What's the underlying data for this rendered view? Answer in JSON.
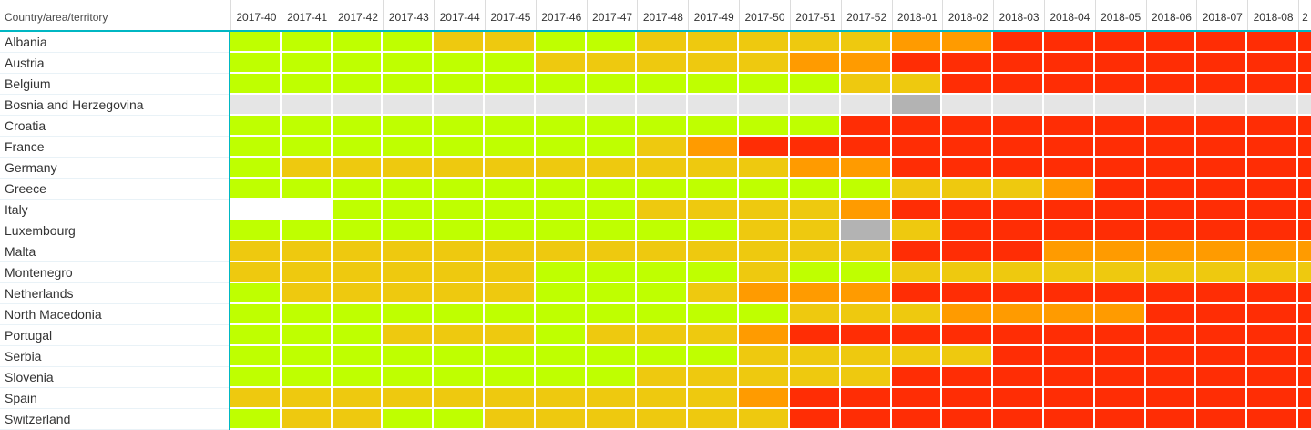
{
  "table": {
    "row_header_label": "Country/area/territory"
  },
  "colors": {
    "accent_teal": "#00B7C3",
    "gridline_white": "#FFFFFF",
    "header_text": "#333333",
    "row_label_text": "#333333"
  },
  "chart_data": {
    "type": "heatmap",
    "title": "",
    "xlabel": "",
    "ylabel": "Country/area/territory",
    "legend_position": "none",
    "grid": true,
    "x_labels": [
      "2017-40",
      "2017-41",
      "2017-42",
      "2017-43",
      "2017-44",
      "2017-45",
      "2017-46",
      "2017-47",
      "2017-48",
      "2017-49",
      "2017-50",
      "2017-51",
      "2017-52",
      "2018-01",
      "2018-02",
      "2018-03",
      "2018-04",
      "2018-05",
      "2018-06",
      "2018-07",
      "2018-08",
      "2"
    ],
    "y_labels": [
      "Albania",
      "Austria",
      "Belgium",
      "Bosnia and Herzegovina",
      "Croatia",
      "France",
      "Germany",
      "Greece",
      "Italy",
      "Luxembourg",
      "Malta",
      "Montenegro",
      "Netherlands",
      "North Macedonia",
      "Portugal",
      "Serbia",
      "Slovenia",
      "Spain",
      "Switzerland"
    ],
    "palette": {
      "g": "#BFFF00",
      "y": "#EEC90F",
      "o": "#FF9B00",
      "r": "#FF2D05",
      "e": "#E5E5E5",
      "d": "#B3B3B3",
      "w": "#FFFFFF"
    },
    "palette_names": {
      "g": "bright-green",
      "y": "yellow",
      "o": "orange",
      "r": "red",
      "e": "light-gray",
      "d": "dark-gray",
      "w": "blank-white"
    },
    "cells": [
      [
        "g",
        "g",
        "g",
        "g",
        "y",
        "y",
        "g",
        "g",
        "y",
        "y",
        "y",
        "y",
        "y",
        "o",
        "o",
        "r",
        "r",
        "r",
        "r",
        "r",
        "r",
        "r"
      ],
      [
        "g",
        "g",
        "g",
        "g",
        "g",
        "g",
        "y",
        "y",
        "y",
        "y",
        "y",
        "o",
        "o",
        "r",
        "r",
        "r",
        "r",
        "r",
        "r",
        "r",
        "r",
        "r"
      ],
      [
        "g",
        "g",
        "g",
        "g",
        "g",
        "g",
        "g",
        "g",
        "g",
        "g",
        "g",
        "g",
        "y",
        "y",
        "r",
        "r",
        "r",
        "r",
        "r",
        "r",
        "r",
        "r"
      ],
      [
        "e",
        "e",
        "e",
        "e",
        "e",
        "e",
        "e",
        "e",
        "e",
        "e",
        "e",
        "e",
        "e",
        "d",
        "e",
        "e",
        "e",
        "e",
        "e",
        "e",
        "e",
        "e"
      ],
      [
        "g",
        "g",
        "g",
        "g",
        "g",
        "g",
        "g",
        "g",
        "g",
        "g",
        "g",
        "g",
        "r",
        "r",
        "r",
        "r",
        "r",
        "r",
        "r",
        "r",
        "r",
        "r"
      ],
      [
        "g",
        "g",
        "g",
        "g",
        "g",
        "g",
        "g",
        "g",
        "y",
        "o",
        "r",
        "r",
        "r",
        "r",
        "r",
        "r",
        "r",
        "r",
        "r",
        "r",
        "r",
        "r"
      ],
      [
        "g",
        "y",
        "y",
        "y",
        "y",
        "y",
        "y",
        "y",
        "y",
        "y",
        "y",
        "o",
        "o",
        "r",
        "r",
        "r",
        "r",
        "r",
        "r",
        "r",
        "r",
        "r"
      ],
      [
        "g",
        "g",
        "g",
        "g",
        "g",
        "g",
        "g",
        "g",
        "g",
        "g",
        "g",
        "g",
        "g",
        "y",
        "y",
        "y",
        "o",
        "r",
        "r",
        "r",
        "r",
        "r"
      ],
      [
        "w",
        "w",
        "g",
        "g",
        "g",
        "g",
        "g",
        "g",
        "y",
        "y",
        "y",
        "y",
        "o",
        "r",
        "r",
        "r",
        "r",
        "r",
        "r",
        "r",
        "r",
        "r"
      ],
      [
        "g",
        "g",
        "g",
        "g",
        "g",
        "g",
        "g",
        "g",
        "g",
        "g",
        "y",
        "y",
        "d",
        "y",
        "r",
        "r",
        "r",
        "r",
        "r",
        "r",
        "r",
        "r"
      ],
      [
        "y",
        "y",
        "y",
        "y",
        "y",
        "y",
        "y",
        "y",
        "y",
        "y",
        "y",
        "y",
        "y",
        "r",
        "r",
        "r",
        "o",
        "o",
        "o",
        "o",
        "o",
        "o"
      ],
      [
        "y",
        "y",
        "y",
        "y",
        "y",
        "y",
        "g",
        "g",
        "g",
        "g",
        "y",
        "g",
        "g",
        "y",
        "y",
        "y",
        "y",
        "y",
        "y",
        "y",
        "y",
        "y"
      ],
      [
        "g",
        "y",
        "y",
        "y",
        "y",
        "y",
        "g",
        "g",
        "g",
        "y",
        "o",
        "o",
        "o",
        "r",
        "r",
        "r",
        "r",
        "r",
        "r",
        "r",
        "r",
        "r"
      ],
      [
        "g",
        "g",
        "g",
        "g",
        "g",
        "g",
        "g",
        "g",
        "g",
        "g",
        "g",
        "y",
        "y",
        "y",
        "o",
        "o",
        "o",
        "o",
        "r",
        "r",
        "r",
        "r"
      ],
      [
        "g",
        "g",
        "g",
        "y",
        "y",
        "y",
        "g",
        "y",
        "y",
        "y",
        "o",
        "r",
        "r",
        "r",
        "r",
        "r",
        "r",
        "r",
        "r",
        "r",
        "r",
        "r"
      ],
      [
        "g",
        "g",
        "g",
        "g",
        "g",
        "g",
        "g",
        "g",
        "g",
        "g",
        "y",
        "y",
        "y",
        "y",
        "y",
        "r",
        "r",
        "r",
        "r",
        "r",
        "r",
        "r"
      ],
      [
        "g",
        "g",
        "g",
        "g",
        "g",
        "g",
        "g",
        "g",
        "y",
        "y",
        "y",
        "y",
        "y",
        "r",
        "r",
        "r",
        "r",
        "r",
        "r",
        "r",
        "r",
        "r"
      ],
      [
        "y",
        "y",
        "y",
        "y",
        "y",
        "y",
        "y",
        "y",
        "y",
        "y",
        "o",
        "r",
        "r",
        "r",
        "r",
        "r",
        "r",
        "r",
        "r",
        "r",
        "r",
        "r"
      ],
      [
        "g",
        "y",
        "y",
        "g",
        "g",
        "y",
        "y",
        "y",
        "y",
        "y",
        "y",
        "r",
        "r",
        "r",
        "r",
        "r",
        "r",
        "r",
        "r",
        "r",
        "r",
        "r"
      ]
    ]
  }
}
